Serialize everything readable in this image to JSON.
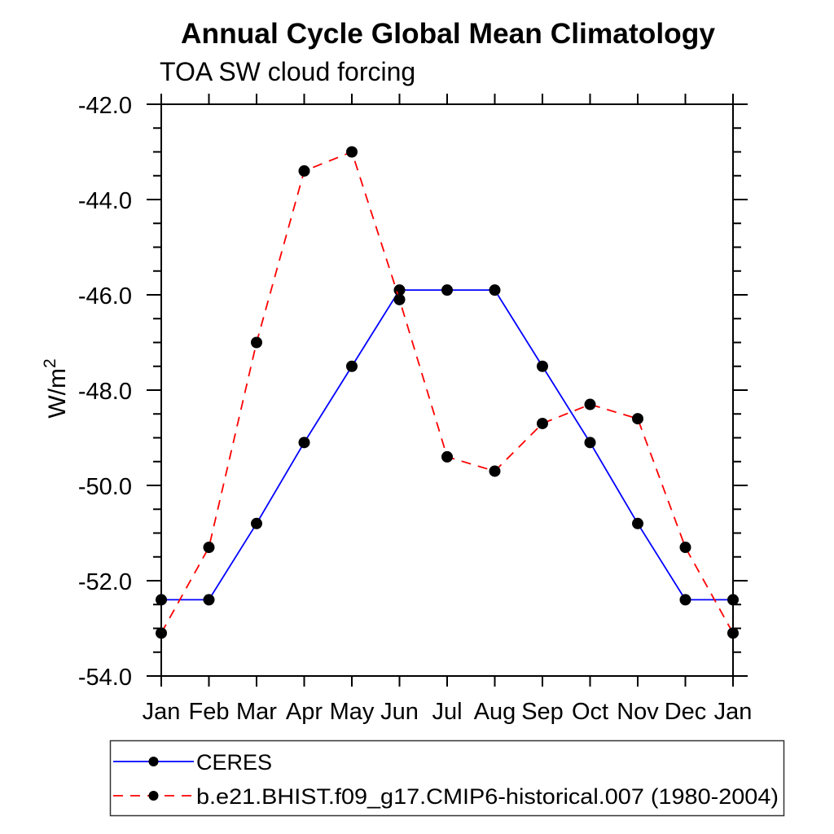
{
  "chart_data": {
    "type": "line",
    "title": "Annual Cycle Global Mean Climatology",
    "subtitle": "TOA SW cloud forcing",
    "xlabel": "",
    "ylabel": "W/m2",
    "ylabel_base": "W/m",
    "ylabel_exponent": "2",
    "x_categories": [
      "Jan",
      "Feb",
      "Mar",
      "Apr",
      "May",
      "Jun",
      "Jul",
      "Aug",
      "Sep",
      "Oct",
      "Nov",
      "Dec",
      "Jan"
    ],
    "ylim": [
      -54.0,
      -42.0
    ],
    "ytick_major_step": 2.0,
    "ytick_minor_step": 0.5,
    "ytick_labels": [
      "-42.0",
      "-44.0",
      "-46.0",
      "-48.0",
      "-50.0",
      "-52.0",
      "-54.0"
    ],
    "grid": false,
    "legend_position": "bottom-left-outside",
    "marker": "filled-circle",
    "marker_color": "#000000",
    "series": [
      {
        "name": "CERES",
        "line_color": "#0000ff",
        "line_style": "solid",
        "values": [
          -52.4,
          -52.4,
          -50.8,
          -49.1,
          -47.5,
          -45.9,
          -45.9,
          -45.9,
          -47.5,
          -49.1,
          -50.8,
          -52.4,
          -52.4
        ]
      },
      {
        "name": "b.e21.BHIST.f09_g17.CMIP6-historical.007 (1980-2004)",
        "line_color": "#ff0000",
        "line_style": "dashed",
        "values": [
          -53.1,
          -51.3,
          -47.0,
          -43.4,
          -43.0,
          -46.1,
          -49.4,
          -49.7,
          -48.7,
          -48.3,
          -48.6,
          -51.3,
          -53.1
        ]
      }
    ]
  }
}
